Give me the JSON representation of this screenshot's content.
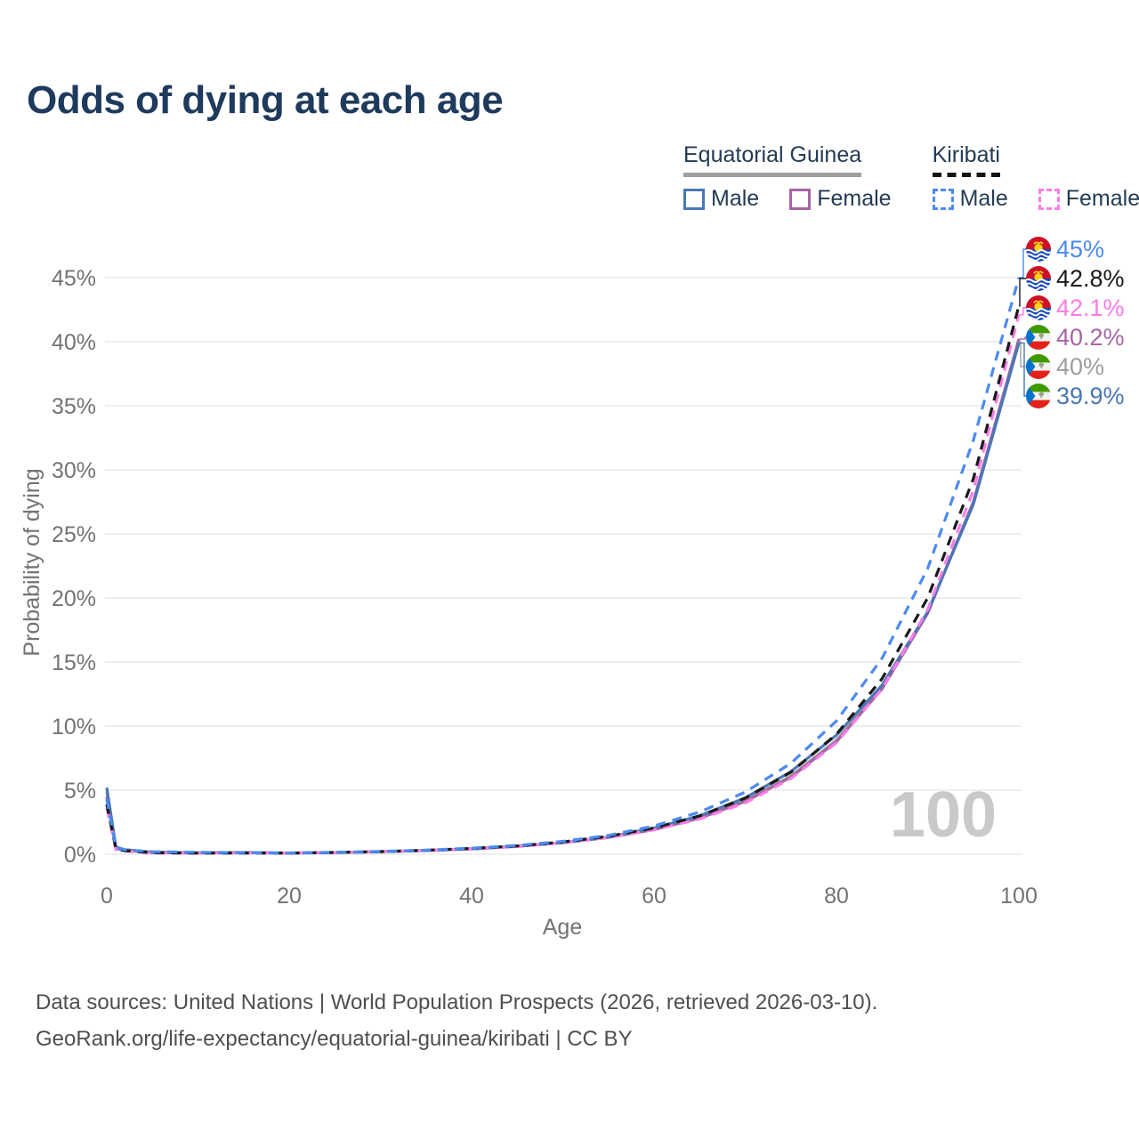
{
  "title": "Odds of dying at each age",
  "legend": {
    "groups": [
      {
        "name": "Equatorial Guinea",
        "underline": {
          "color": "#9e9e9e",
          "style": "solid"
        },
        "items": [
          {
            "label": "Male",
            "color": "#4a77b4",
            "dash": false
          },
          {
            "label": "Female",
            "color": "#a765a5",
            "dash": false
          }
        ]
      },
      {
        "name": "Kiribati",
        "underline": {
          "color": "#141414",
          "style": "dashed"
        },
        "items": [
          {
            "label": "Male",
            "color": "#4d8af0",
            "dash": true
          },
          {
            "label": "Female",
            "color": "#fb7de8",
            "dash": true
          }
        ]
      }
    ]
  },
  "watermark": "100",
  "footer": {
    "line1": "Data sources: United Nations | World Population Prospects (2026, retrieved 2026-03-10).",
    "line2": "GeoRank.org/life-expectancy/equatorial-guinea/kiribati | CC BY"
  },
  "chart_data": {
    "type": "line",
    "title": "Odds of dying at each age",
    "xlabel": "Age",
    "ylabel": "Probability of dying",
    "x_ticks": [
      0,
      20,
      40,
      60,
      80,
      100
    ],
    "y_ticks_pct": [
      0,
      5,
      10,
      15,
      20,
      25,
      30,
      35,
      40,
      45
    ],
    "xlim": [
      0,
      100
    ],
    "ylim_pct": [
      0,
      48
    ],
    "grid": "horizontal-only",
    "legend_position": "top-right",
    "hover_age_indicator": "100",
    "ages": [
      0,
      1,
      2,
      5,
      10,
      15,
      20,
      25,
      30,
      35,
      40,
      45,
      50,
      55,
      60,
      65,
      70,
      75,
      80,
      85,
      90,
      95,
      100
    ],
    "series": [
      {
        "name": "Kiribati Male",
        "country": "Kiribati",
        "sex": "Male",
        "flag": "ki",
        "color": "#4d8af0",
        "dash": true,
        "end_label": "45%",
        "end_value_pct": 45,
        "values": [
          4.3,
          0.5,
          0.35,
          0.2,
          0.15,
          0.12,
          0.1,
          0.15,
          0.22,
          0.32,
          0.47,
          0.69,
          1.01,
          1.47,
          2.2,
          3.3,
          4.85,
          7.1,
          10.4,
          15.3,
          22.3,
          32.3,
          45
        ]
      },
      {
        "name": "Kiribati Both sexes",
        "country": "Kiribati",
        "sex": "Both",
        "flag": "ki",
        "color": "#1a1a1a",
        "dash": true,
        "end_label": "42.8%",
        "end_value_pct": 42.8,
        "values": [
          3.9,
          0.4,
          0.28,
          0.12,
          0.09,
          0.1,
          0.1,
          0.14,
          0.21,
          0.31,
          0.45,
          0.65,
          0.96,
          1.4,
          2.05,
          2.99,
          4.38,
          6.4,
          9.36,
          13.7,
          20,
          29.3,
          42.8
        ]
      },
      {
        "name": "Kiribati Female",
        "country": "Kiribati",
        "sex": "Female",
        "flag": "ki",
        "color": "#fb7de8",
        "dash": true,
        "end_label": "42.1%",
        "end_value_pct": 42.1,
        "values": [
          3.6,
          0.35,
          0.25,
          0.1,
          0.08,
          0.09,
          0.09,
          0.13,
          0.2,
          0.29,
          0.42,
          0.6,
          0.9,
          1.3,
          1.9,
          2.75,
          4,
          5.9,
          8.7,
          12.9,
          19.1,
          28.4,
          42.1
        ]
      },
      {
        "name": "Equatorial Guinea Female",
        "country": "Equatorial Guinea",
        "sex": "Female",
        "flag": "gq",
        "color": "#a765a5",
        "dash": false,
        "end_label": "40.2%",
        "end_value_pct": 40.2,
        "values": [
          4.5,
          0.45,
          0.3,
          0.13,
          0.1,
          0.12,
          0.09,
          0.13,
          0.2,
          0.29,
          0.42,
          0.61,
          0.9,
          1.31,
          1.92,
          2.81,
          4.11,
          6.01,
          8.79,
          12.9,
          18.8,
          27.5,
          40.2
        ]
      },
      {
        "name": "Equatorial Guinea Both sexes",
        "country": "Equatorial Guinea",
        "sex": "Both",
        "flag": "gq",
        "color": "#9e9e9e",
        "dash": false,
        "end_label": "40%",
        "end_value_pct": 40,
        "values": [
          4.85,
          0.5,
          0.33,
          0.15,
          0.11,
          0.13,
          0.09,
          0.13,
          0.2,
          0.29,
          0.42,
          0.61,
          0.9,
          1.31,
          1.95,
          2.85,
          4.2,
          6.1,
          8.9,
          13,
          18.9,
          27.4,
          40
        ]
      },
      {
        "name": "Equatorial Guinea Male",
        "country": "Equatorial Guinea",
        "sex": "Male",
        "flag": "gq",
        "color": "#4a77b4",
        "dash": false,
        "end_label": "39.9%",
        "end_value_pct": 39.9,
        "values": [
          5.2,
          0.55,
          0.36,
          0.17,
          0.12,
          0.14,
          0.1,
          0.14,
          0.2,
          0.29,
          0.43,
          0.63,
          0.92,
          1.34,
          2.05,
          3,
          4.4,
          6.45,
          9.3,
          13.2,
          18.9,
          27.3,
          39.9
        ]
      }
    ]
  }
}
